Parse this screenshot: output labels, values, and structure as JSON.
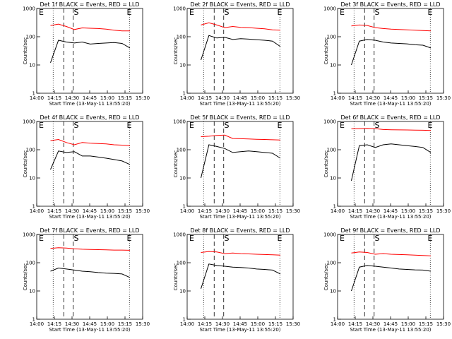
{
  "figure": {
    "panels": [
      {
        "title": "Det 1f BLACK = Events, RED = LLD",
        "events": [
          12,
          75,
          65,
          60,
          65,
          55,
          58,
          60,
          62,
          58,
          40
        ],
        "lld": [
          250,
          280,
          230,
          180,
          205,
          200,
          195,
          185,
          170,
          160,
          160
        ]
      },
      {
        "title": "Det 2f BLACK = Events, RED = LLD",
        "events": [
          15,
          110,
          90,
          95,
          80,
          85,
          82,
          78,
          75,
          70,
          45
        ],
        "lld": [
          260,
          310,
          260,
          210,
          230,
          215,
          210,
          200,
          190,
          175,
          170
        ]
      },
      {
        "title": "Det 3f BLACK = Events, RED = LLD",
        "events": [
          10,
          70,
          80,
          75,
          65,
          60,
          58,
          56,
          52,
          50,
          40
        ],
        "lld": [
          240,
          260,
          250,
          210,
          195,
          185,
          180,
          175,
          170,
          165,
          160
        ]
      },
      {
        "title": "Det 4f BLACK = Events, RED = LLD",
        "events": [
          20,
          90,
          80,
          85,
          60,
          60,
          55,
          50,
          45,
          40,
          30
        ],
        "lld": [
          210,
          230,
          180,
          150,
          180,
          170,
          165,
          160,
          150,
          145,
          140
        ]
      },
      {
        "title": "Det 5f BLACK = Events, RED = LLD",
        "events": [
          10,
          150,
          130,
          110,
          80,
          85,
          90,
          85,
          80,
          75,
          50
        ],
        "lld": [
          290,
          300,
          320,
          330,
          250,
          245,
          240,
          235,
          230,
          225,
          220
        ]
      },
      {
        "title": "Det 6f BLACK = Events, RED = LLD",
        "events": [
          8,
          140,
          150,
          120,
          150,
          160,
          150,
          140,
          130,
          120,
          80
        ],
        "lld": [
          550,
          560,
          570,
          560,
          520,
          510,
          505,
          500,
          495,
          490,
          480
        ]
      },
      {
        "title": "Det 7f BLACK = Events, RED = LLD",
        "events": [
          50,
          65,
          60,
          55,
          50,
          48,
          45,
          43,
          42,
          40,
          30
        ],
        "lld": [
          320,
          340,
          330,
          310,
          300,
          295,
          290,
          285,
          280,
          280,
          275
        ]
      },
      {
        "title": "Det 8f BLACK = Events, RED = LLD",
        "events": [
          12,
          90,
          80,
          75,
          70,
          68,
          65,
          60,
          58,
          55,
          40
        ],
        "lld": [
          230,
          250,
          240,
          210,
          220,
          210,
          205,
          200,
          195,
          190,
          185
        ]
      },
      {
        "title": "Det 9f BLACK = Events, RED = LLD",
        "events": [
          10,
          70,
          80,
          75,
          70,
          65,
          60,
          58,
          56,
          55,
          50
        ],
        "lld": [
          220,
          240,
          230,
          200,
          210,
          200,
          195,
          190,
          185,
          180,
          175
        ]
      }
    ]
  },
  "chart_data": {
    "type": "line",
    "ylabel": "Counts/sec",
    "xlabel": "Start Time (13-May-11 13:55:20)",
    "x_tick_labels": [
      "14:00",
      "14:15",
      "14:30",
      "14:45",
      "15:00",
      "15:15",
      "15:30"
    ],
    "y_tick_labels": [
      "1",
      "10",
      "100",
      "1000"
    ],
    "ylim": [
      1,
      1000
    ],
    "yscale": "log",
    "markers": [
      "E",
      "S",
      "E"
    ],
    "series_colors": {
      "events": "#000000",
      "lld": "#ff0000"
    }
  }
}
